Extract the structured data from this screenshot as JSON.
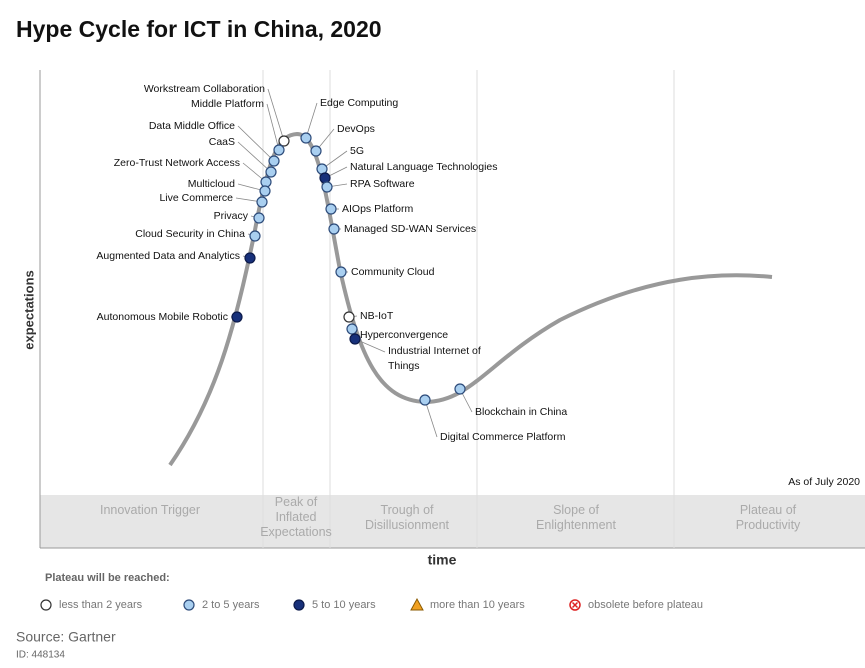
{
  "header": {
    "title": "Hype Cycle for ICT in China, 2020"
  },
  "axes": {
    "y_label": "expectations",
    "x_label": "time"
  },
  "as_of": "As of July 2020",
  "phases": [
    "Innovation Trigger",
    "Peak of Inflated Expectations",
    "Trough of Disillusionment",
    "Slope of Enlightenment",
    "Plateau of Productivity"
  ],
  "nodes": [
    {
      "label": "Workstream Collaboration",
      "plateau": "less than 2 years"
    },
    {
      "label": "Middle Platform",
      "plateau": "2 to 5 years"
    },
    {
      "label": "Edge Computing",
      "plateau": "2 to 5 years"
    },
    {
      "label": "Data Middle Office",
      "plateau": "2 to 5 years"
    },
    {
      "label": "CaaS",
      "plateau": "2 to 5 years"
    },
    {
      "label": "DevOps",
      "plateau": "2 to 5 years"
    },
    {
      "label": "5G",
      "plateau": "2 to 5 years"
    },
    {
      "label": "Zero-Trust Network Access",
      "plateau": "2 to 5 years"
    },
    {
      "label": "Natural Language Technologies",
      "plateau": "5 to 10 years"
    },
    {
      "label": "Multicloud",
      "plateau": "2 to 5 years"
    },
    {
      "label": "RPA Software",
      "plateau": "2 to 5 years"
    },
    {
      "label": "Live Commerce",
      "plateau": "2 to 5 years"
    },
    {
      "label": "AIOps Platform",
      "plateau": "2 to 5 years"
    },
    {
      "label": "Privacy",
      "plateau": "2 to 5 years"
    },
    {
      "label": "Managed SD-WAN Services",
      "plateau": "2 to 5 years"
    },
    {
      "label": "Cloud Security in China",
      "plateau": "2 to 5 years"
    },
    {
      "label": "Augmented Data and Analytics",
      "plateau": "5 to 10 years"
    },
    {
      "label": "Community Cloud",
      "plateau": "2 to 5 years"
    },
    {
      "label": "Autonomous Mobile Robotic",
      "plateau": "5 to 10 years"
    },
    {
      "label": "NB-IoT",
      "plateau": "less than 2 years"
    },
    {
      "label": "Hyperconvergence",
      "plateau": "2 to 5 years"
    },
    {
      "label": "Industrial Internet of Things",
      "plateau": "5 to 10 years"
    },
    {
      "label": "Blockchain in China",
      "plateau": "2 to 5 years"
    },
    {
      "label": "Digital Commerce Platform",
      "plateau": "2 to 5 years"
    }
  ],
  "legend": {
    "title": "Plateau will be reached:",
    "items": [
      "less than 2 years",
      "2 to 5 years",
      "5 to 10 years",
      "more than 10 years",
      "obsolete before plateau"
    ]
  },
  "footer": {
    "source": "Source: Gartner",
    "id": "ID: 448134"
  }
}
